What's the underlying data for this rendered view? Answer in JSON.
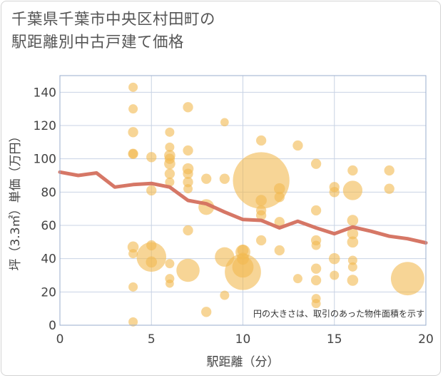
{
  "page": {
    "title_line1": "千葉県千葉市中央区村田町の",
    "title_line2": "駅距離別中古戸建て価格"
  },
  "chart_data": {
    "type": "scatter",
    "xlabel": "駅距離（分）",
    "ylabel": "坪（3.3㎡）単価（万円）",
    "xlim": [
      0,
      20
    ],
    "ylim": [
      0,
      150
    ],
    "xticks": [
      0,
      5,
      10,
      15,
      20
    ],
    "yticks": [
      0,
      20,
      40,
      60,
      80,
      100,
      120,
      140
    ],
    "grid": true,
    "annotation": "円の大きさは、取引のあった物件面積を示す",
    "colors": {
      "bubble": "#f2b950",
      "line": "#d4705e",
      "grid": "#c8d3e4",
      "frame": "#9aaecd"
    },
    "points": [
      {
        "x": 4,
        "y": 143,
        "s": 1
      },
      {
        "x": 4,
        "y": 130,
        "s": 1
      },
      {
        "x": 4,
        "y": 116,
        "s": 1.1
      },
      {
        "x": 4,
        "y": 103,
        "s": 1.1
      },
      {
        "x": 4,
        "y": 103,
        "s": 1
      },
      {
        "x": 4,
        "y": 47,
        "s": 1.2
      },
      {
        "x": 4,
        "y": 43,
        "s": 1
      },
      {
        "x": 4,
        "y": 23,
        "s": 1
      },
      {
        "x": 4,
        "y": 2,
        "s": 1
      },
      {
        "x": 5,
        "y": 101,
        "s": 1.1
      },
      {
        "x": 5,
        "y": 81,
        "s": 1.1
      },
      {
        "x": 5,
        "y": 48,
        "s": 1.1
      },
      {
        "x": 5,
        "y": 41,
        "s": 3.2
      },
      {
        "x": 5,
        "y": 38,
        "s": 1.2
      },
      {
        "x": 6,
        "y": 116,
        "s": 1
      },
      {
        "x": 6,
        "y": 107,
        "s": 1
      },
      {
        "x": 6,
        "y": 102,
        "s": 1.2
      },
      {
        "x": 6,
        "y": 100,
        "s": 1.1
      },
      {
        "x": 6,
        "y": 97,
        "s": 1.2
      },
      {
        "x": 6,
        "y": 91,
        "s": 1.1
      },
      {
        "x": 6,
        "y": 86,
        "s": 1
      },
      {
        "x": 6,
        "y": 37,
        "s": 1
      },
      {
        "x": 6,
        "y": 28,
        "s": 1
      },
      {
        "x": 6,
        "y": 25,
        "s": 0.9
      },
      {
        "x": 7,
        "y": 131,
        "s": 1.1
      },
      {
        "x": 7,
        "y": 105,
        "s": 1.1
      },
      {
        "x": 7,
        "y": 94,
        "s": 1.2
      },
      {
        "x": 7,
        "y": 91,
        "s": 1.1
      },
      {
        "x": 7,
        "y": 86,
        "s": 1.1
      },
      {
        "x": 7,
        "y": 82,
        "s": 1
      },
      {
        "x": 7,
        "y": 57,
        "s": 1.1
      },
      {
        "x": 7,
        "y": 33,
        "s": 2.5
      },
      {
        "x": 8,
        "y": 88,
        "s": 1.1
      },
      {
        "x": 8,
        "y": 71,
        "s": 1.7
      },
      {
        "x": 8,
        "y": 8,
        "s": 1.1
      },
      {
        "x": 9,
        "y": 122,
        "s": 0.9
      },
      {
        "x": 9,
        "y": 88,
        "s": 1.1
      },
      {
        "x": 9,
        "y": 41,
        "s": 2.1
      },
      {
        "x": 9,
        "y": 18,
        "s": 1
      },
      {
        "x": 10,
        "y": 45,
        "s": 1.2
      },
      {
        "x": 10,
        "y": 44,
        "s": 1.6
      },
      {
        "x": 10,
        "y": 40,
        "s": 1.3
      },
      {
        "x": 10,
        "y": 35,
        "s": 2.3
      },
      {
        "x": 10,
        "y": 32,
        "s": 3.9
      },
      {
        "x": 11,
        "y": 111,
        "s": 1.1
      },
      {
        "x": 11,
        "y": 87,
        "s": 6.1
      },
      {
        "x": 11,
        "y": 75,
        "s": 1.2
      },
      {
        "x": 11,
        "y": 69,
        "s": 1.1
      },
      {
        "x": 11,
        "y": 66,
        "s": 1.1
      },
      {
        "x": 11,
        "y": 51,
        "s": 1.1
      },
      {
        "x": 12,
        "y": 82,
        "s": 1.2
      },
      {
        "x": 12,
        "y": 77,
        "s": 1.1
      },
      {
        "x": 12,
        "y": 62,
        "s": 1.1
      },
      {
        "x": 12,
        "y": 45,
        "s": 1.1
      },
      {
        "x": 13,
        "y": 108,
        "s": 1.1
      },
      {
        "x": 13,
        "y": 28,
        "s": 1
      },
      {
        "x": 14,
        "y": 97,
        "s": 1.1
      },
      {
        "x": 14,
        "y": 69,
        "s": 1.1
      },
      {
        "x": 14,
        "y": 51,
        "s": 1.1
      },
      {
        "x": 14,
        "y": 48,
        "s": 1
      },
      {
        "x": 14,
        "y": 34,
        "s": 1.1
      },
      {
        "x": 14,
        "y": 27,
        "s": 1.1
      },
      {
        "x": 14,
        "y": 16,
        "s": 1
      },
      {
        "x": 14,
        "y": 13,
        "s": 1
      },
      {
        "x": 15,
        "y": 83,
        "s": 1.1
      },
      {
        "x": 15,
        "y": 80,
        "s": 1.1
      },
      {
        "x": 15,
        "y": 40,
        "s": 1.2
      },
      {
        "x": 15,
        "y": 30,
        "s": 1
      },
      {
        "x": 16,
        "y": 93,
        "s": 1.1
      },
      {
        "x": 16,
        "y": 81,
        "s": 2.1
      },
      {
        "x": 16,
        "y": 63,
        "s": 1.2
      },
      {
        "x": 16,
        "y": 55,
        "s": 1.2
      },
      {
        "x": 16,
        "y": 50,
        "s": 1.2
      },
      {
        "x": 16,
        "y": 39,
        "s": 1
      },
      {
        "x": 16,
        "y": 35,
        "s": 1
      },
      {
        "x": 16,
        "y": 27,
        "s": 1.2
      },
      {
        "x": 18,
        "y": 93,
        "s": 1.1
      },
      {
        "x": 18,
        "y": 82,
        "s": 1.1
      },
      {
        "x": 19,
        "y": 28,
        "s": 3.6
      }
    ],
    "trend": {
      "x": [
        0,
        1,
        2,
        3,
        4,
        5,
        6,
        7,
        8,
        9,
        10,
        11,
        12,
        13,
        14,
        15,
        16,
        17,
        18,
        19,
        20
      ],
      "y": [
        92,
        90,
        91.5,
        83,
        84.5,
        85.2,
        83,
        75,
        73,
        68,
        63.5,
        63,
        58.5,
        62.5,
        58.5,
        55,
        59,
        56.5,
        53.5,
        52,
        49.5
      ]
    }
  }
}
